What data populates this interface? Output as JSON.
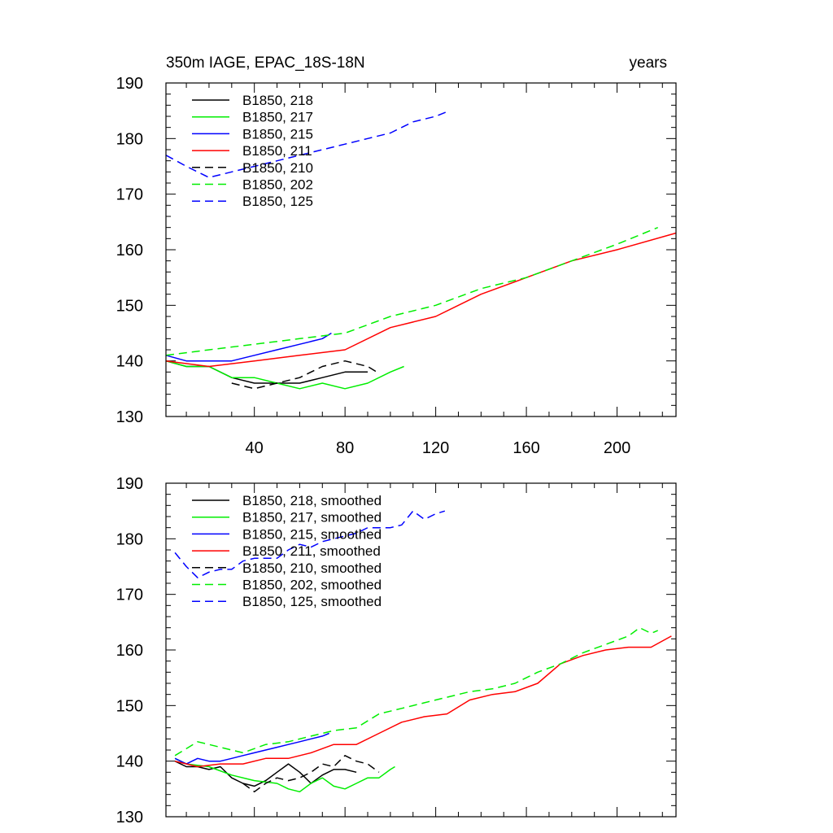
{
  "chart_data": [
    {
      "type": "line",
      "title_left": "350m IAGE, EPAC_18S-18N",
      "title_right": "years",
      "xlim": [
        1,
        226
      ],
      "ylim": [
        130,
        190
      ],
      "xticks": [
        40,
        80,
        120,
        160,
        200
      ],
      "yticks": [
        130,
        140,
        150,
        160,
        170,
        180,
        190
      ],
      "legend_position": "top-left",
      "series": [
        {
          "name": "B1850, 218",
          "color": "#000000",
          "dash": "solid",
          "x": [
            1,
            10,
            20,
            30,
            40,
            50,
            60,
            70,
            80,
            90
          ],
          "y": [
            140,
            139,
            139,
            137,
            136,
            136,
            136,
            137,
            138,
            138
          ]
        },
        {
          "name": "B1850, 217",
          "color": "#00ee00",
          "dash": "solid",
          "x": [
            1,
            10,
            20,
            30,
            40,
            50,
            60,
            70,
            80,
            90,
            100,
            106
          ],
          "y": [
            140,
            139,
            139,
            137,
            137,
            136,
            135,
            136,
            135,
            136,
            138,
            139
          ]
        },
        {
          "name": "B1850, 215",
          "color": "#0000ff",
          "dash": "solid",
          "x": [
            1,
            10,
            20,
            30,
            40,
            50,
            60,
            70,
            74
          ],
          "y": [
            141,
            140,
            140,
            140,
            141,
            142,
            143,
            144,
            145
          ]
        },
        {
          "name": "B1850, 211",
          "color": "#ff0000",
          "dash": "solid",
          "x": [
            1,
            20,
            40,
            60,
            80,
            100,
            120,
            140,
            160,
            180,
            200,
            226
          ],
          "y": [
            140,
            139,
            140,
            141,
            142,
            146,
            148,
            152,
            155,
            158,
            160,
            163
          ]
        },
        {
          "name": "B1850, 210",
          "color": "#000000",
          "dash": "dashed",
          "x": [
            30,
            40,
            50,
            60,
            70,
            80,
            90,
            94
          ],
          "y": [
            136,
            135,
            136,
            137,
            139,
            140,
            139,
            138
          ]
        },
        {
          "name": "B1850, 202",
          "color": "#00ee00",
          "dash": "dashed",
          "x": [
            1,
            20,
            40,
            60,
            80,
            100,
            120,
            140,
            160,
            180,
            200,
            218
          ],
          "y": [
            141,
            142,
            143,
            144,
            145,
            148,
            150,
            153,
            155,
            158,
            161,
            164
          ]
        },
        {
          "name": "B1850, 125",
          "color": "#0000ff",
          "dash": "dashed",
          "x": [
            1,
            10,
            20,
            30,
            40,
            50,
            60,
            70,
            80,
            90,
            100,
            110,
            120,
            126
          ],
          "y": [
            177,
            175,
            173,
            174,
            175,
            176,
            177,
            178,
            179,
            180,
            181,
            183,
            184,
            185
          ]
        }
      ]
    },
    {
      "type": "line",
      "xlim": [
        1,
        226
      ],
      "ylim": [
        130,
        190
      ],
      "xticks": [
        40,
        80,
        120,
        160,
        200
      ],
      "yticks": [
        130,
        140,
        150,
        160,
        170,
        180,
        190
      ],
      "legend_position": "top-left",
      "series": [
        {
          "name": "B1850, 218, smoothed",
          "color": "#000000",
          "dash": "solid",
          "x": [
            5,
            10,
            15,
            20,
            25,
            30,
            35,
            40,
            45,
            50,
            55,
            60,
            65,
            70,
            75,
            80,
            85
          ],
          "y": [
            140,
            139,
            139,
            138.5,
            139,
            137,
            136,
            135.5,
            136.5,
            138,
            139.5,
            138,
            136,
            137.5,
            138.5,
            138.5,
            138
          ]
        },
        {
          "name": "B1850, 217, smoothed",
          "color": "#00ee00",
          "dash": "solid",
          "x": [
            5,
            10,
            20,
            30,
            40,
            50,
            55,
            60,
            65,
            70,
            75,
            80,
            85,
            90,
            95,
            100,
            102
          ],
          "y": [
            140.5,
            139.5,
            139,
            137.5,
            136.5,
            136,
            135,
            134.5,
            136,
            137,
            135.5,
            135,
            136,
            137,
            137,
            138.5,
            139
          ]
        },
        {
          "name": "B1850, 215, smoothed",
          "color": "#0000ff",
          "dash": "solid",
          "x": [
            5,
            10,
            15,
            20,
            25,
            30,
            35,
            40,
            45,
            50,
            55,
            60,
            65,
            70,
            73
          ],
          "y": [
            140.5,
            139.5,
            140.5,
            140,
            140,
            140.5,
            141,
            141.5,
            142,
            142.5,
            143,
            143.5,
            144,
            144.5,
            145
          ]
        },
        {
          "name": "B1850, 211, smoothed",
          "color": "#ff0000",
          "dash": "solid",
          "x": [
            5,
            15,
            25,
            35,
            45,
            55,
            65,
            75,
            85,
            95,
            105,
            115,
            125,
            135,
            145,
            155,
            165,
            175,
            185,
            195,
            205,
            215,
            224
          ],
          "y": [
            140,
            139,
            139.5,
            139.5,
            140.5,
            140.5,
            141.5,
            143,
            143,
            145,
            147,
            148,
            148.5,
            151,
            152,
            152.5,
            154,
            157.5,
            159,
            160,
            160.5,
            160.5,
            162.5
          ]
        },
        {
          "name": "B1850, 210, smoothed",
          "color": "#000000",
          "dash": "dashed",
          "x": [
            35,
            40,
            45,
            50,
            55,
            60,
            65,
            70,
            75,
            80,
            85,
            90,
            95
          ],
          "y": [
            136,
            134.5,
            136,
            137,
            136.5,
            137,
            138,
            139.5,
            139,
            141,
            140,
            139.5,
            138
          ]
        },
        {
          "name": "B1850, 202, smoothed",
          "color": "#00ee00",
          "dash": "dashed",
          "x": [
            5,
            15,
            25,
            35,
            45,
            55,
            65,
            75,
            85,
            95,
            105,
            115,
            125,
            135,
            145,
            155,
            165,
            175,
            185,
            195,
            205,
            210,
            215,
            218
          ],
          "y": [
            141,
            143.5,
            142.5,
            141.5,
            143,
            143.5,
            144.5,
            145.5,
            146,
            148.5,
            149.5,
            150.5,
            151.5,
            152.5,
            153,
            154,
            156,
            157.5,
            159.5,
            161,
            162.5,
            164,
            163,
            163.5
          ]
        },
        {
          "name": "B1850, 125, smoothed",
          "color": "#0000ff",
          "dash": "dashed",
          "x": [
            5,
            10,
            15,
            20,
            25,
            30,
            35,
            40,
            45,
            50,
            55,
            60,
            65,
            70,
            75,
            80,
            85,
            90,
            95,
            100,
            105,
            110,
            115,
            120,
            124
          ],
          "y": [
            177.5,
            175,
            173,
            174,
            174.5,
            174.5,
            176,
            176.5,
            176.5,
            176.5,
            178,
            179,
            178.5,
            179.5,
            180,
            180.5,
            181,
            182,
            182,
            182,
            182.5,
            185,
            183.5,
            184.5,
            185
          ]
        }
      ]
    }
  ]
}
